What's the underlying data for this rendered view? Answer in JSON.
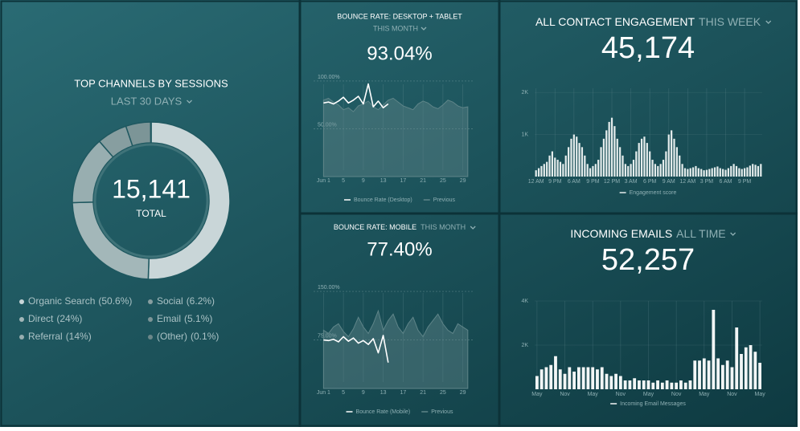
{
  "chart_data": [
    {
      "type": "pie",
      "title": "TOP CHANNELS BY SESSIONS",
      "subtitle": "LAST 30 DAYS",
      "total": "15,141",
      "total_label": "TOTAL",
      "categories": [
        "Organic Search",
        "Direct",
        "Referral",
        "Social",
        "Email",
        "(Other)"
      ],
      "values": [
        50.6,
        24,
        14,
        6.2,
        5.1,
        0.1
      ],
      "value_labels": [
        "(50.6%)",
        "(24%)",
        "(14%)",
        "(6.2%)",
        "(5.1%)",
        "(0.1%)"
      ],
      "colors": [
        "#c9d6d8",
        "#a3b7b9",
        "#98aeb0",
        "#879ea0",
        "#7c9597",
        "#6b8789"
      ]
    },
    {
      "type": "line",
      "title": "BOUNCE RATE: DESKTOP + TABLET",
      "subtitle": "THIS MONTH",
      "kpi": "93.04%",
      "x": [
        1,
        2,
        3,
        4,
        5,
        6,
        7,
        8,
        9,
        10,
        11,
        12,
        13,
        14,
        15,
        16,
        17,
        18,
        19,
        20,
        21,
        22,
        23,
        24,
        25,
        26,
        27,
        28,
        29,
        30
      ],
      "xlim": [
        -1,
        31
      ],
      "xticks": [
        {
          "value": 1,
          "label": "Jun 1"
        },
        5,
        9,
        13,
        17,
        21,
        25,
        29
      ],
      "ylim": [
        0,
        105
      ],
      "yticks": [
        {
          "value": 50,
          "label": "50.00%"
        },
        {
          "value": 100,
          "label": "100.00%"
        }
      ],
      "grid": true,
      "series": [
        {
          "name": "Bounce Rate (Desktop)",
          "color": "#ffffff",
          "values": [
            77,
            78,
            76,
            79,
            83,
            77,
            80,
            84,
            76,
            97,
            73,
            79,
            72,
            76,
            null,
            null,
            null,
            null,
            null,
            null,
            null,
            null,
            null,
            null,
            null,
            null,
            null,
            null,
            null,
            null
          ]
        },
        {
          "name": "Previous",
          "color": "#5f8589",
          "area": true,
          "values": [
            80,
            82,
            78,
            75,
            70,
            72,
            68,
            74,
            76,
            79,
            73,
            70,
            75,
            80,
            82,
            78,
            74,
            72,
            70,
            76,
            79,
            77,
            73,
            71,
            75,
            80,
            78,
            74,
            72,
            73
          ]
        }
      ]
    },
    {
      "type": "line",
      "title": "BOUNCE RATE: MOBILE",
      "subtitle": "THIS MONTH",
      "kpi": "77.40%",
      "x": [
        1,
        2,
        3,
        4,
        5,
        6,
        7,
        8,
        9,
        10,
        11,
        12,
        13,
        14,
        15,
        16,
        17,
        18,
        19,
        20,
        21,
        22,
        23,
        24,
        25,
        26,
        27,
        28,
        29,
        30
      ],
      "xlim": [
        -1,
        31
      ],
      "xticks": [
        {
          "value": 1,
          "label": "Jun 1"
        },
        5,
        9,
        13,
        17,
        21,
        25,
        29
      ],
      "ylim": [
        0,
        160
      ],
      "yticks": [
        {
          "value": 75,
          "label": "75.00%"
        },
        {
          "value": 150,
          "label": "150.00%"
        }
      ],
      "grid": true,
      "series": [
        {
          "name": "Bounce Rate (Mobile)",
          "color": "#ffffff",
          "values": [
            75,
            74,
            76,
            72,
            80,
            73,
            78,
            70,
            74,
            68,
            77,
            55,
            82,
            40,
            null,
            null,
            null,
            null,
            null,
            null,
            null,
            null,
            null,
            null,
            null,
            null,
            null,
            null,
            null,
            null
          ]
        },
        {
          "name": "Previous",
          "color": "#5f8589",
          "area": true,
          "values": [
            90,
            85,
            95,
            100,
            88,
            80,
            92,
            110,
            95,
            85,
            100,
            120,
            90,
            105,
            115,
            95,
            85,
            100,
            110,
            90,
            80,
            95,
            105,
            115,
            100,
            90,
            85,
            100,
            95,
            90
          ]
        }
      ]
    },
    {
      "type": "bar",
      "title": "ALL CONTACT ENGAGEMENT",
      "subtitle": "THIS WEEK",
      "kpi": "45,174",
      "categories": [
        "12 AM",
        null,
        null,
        null,
        null,
        null,
        null,
        "9 PM",
        null,
        null,
        null,
        null,
        null,
        null,
        "6 AM",
        null,
        null,
        null,
        null,
        null,
        null,
        "9 PM",
        null,
        null,
        null,
        null,
        null,
        null,
        "12 PM",
        null,
        null,
        null,
        null,
        null,
        null,
        "3 AM",
        null,
        null,
        null,
        null,
        null,
        null,
        "6 PM",
        null,
        null,
        null,
        null,
        null,
        null,
        "9 AM",
        null,
        null,
        null,
        null,
        null,
        null,
        "12 AM",
        null,
        null,
        null,
        null,
        null,
        null,
        "3 PM",
        null,
        null,
        null,
        null,
        null,
        null,
        "6 AM",
        null,
        null,
        null,
        null,
        null,
        null,
        "9 PM",
        null,
        null,
        null,
        null,
        null,
        null
      ],
      "ylim": [
        0,
        2100
      ],
      "yticks": [
        {
          "value": 1000,
          "label": "1K"
        },
        {
          "value": 2000,
          "label": "2K"
        }
      ],
      "grid": true,
      "series": [
        {
          "name": "Engagement score",
          "color": "#e4ecec",
          "values": [
            150,
            200,
            250,
            300,
            350,
            500,
            600,
            450,
            400,
            350,
            300,
            500,
            700,
            900,
            1000,
            950,
            800,
            700,
            500,
            300,
            200,
            250,
            300,
            400,
            700,
            900,
            1100,
            1300,
            1400,
            1200,
            900,
            700,
            500,
            300,
            250,
            300,
            400,
            600,
            800,
            900,
            950,
            800,
            600,
            400,
            300,
            250,
            300,
            400,
            600,
            1000,
            1100,
            900,
            700,
            500,
            300,
            200,
            180,
            200,
            220,
            250,
            200,
            180,
            150,
            160,
            180,
            200,
            220,
            240,
            200,
            180,
            160,
            200,
            250,
            300,
            250,
            200,
            180,
            200,
            220,
            260,
            300,
            280,
            250,
            300
          ]
        }
      ]
    },
    {
      "type": "bar",
      "title": "INCOMING EMAILS",
      "subtitle": "ALL TIME",
      "kpi": "52,257",
      "categories": [
        "May",
        null,
        null,
        null,
        null,
        null,
        "Nov",
        null,
        null,
        null,
        null,
        null,
        "May",
        null,
        null,
        null,
        null,
        null,
        "Nov",
        null,
        null,
        null,
        null,
        null,
        "May",
        null,
        null,
        null,
        null,
        null,
        "Nov",
        null,
        null,
        null,
        null,
        null,
        "May",
        null,
        null,
        null,
        null,
        null,
        "Nov",
        null,
        null,
        null,
        null,
        null,
        "May"
      ],
      "ylim": [
        0,
        4000
      ],
      "yticks": [
        {
          "value": 2000,
          "label": "2K"
        },
        {
          "value": 4000,
          "label": "4K"
        }
      ],
      "grid": true,
      "series": [
        {
          "name": "Incoming Email Messages",
          "color": "#f2f6f6",
          "values": [
            600,
            900,
            1000,
            1100,
            1500,
            900,
            700,
            1000,
            800,
            1000,
            1000,
            1000,
            1000,
            900,
            1000,
            700,
            600,
            700,
            600,
            400,
            400,
            500,
            400,
            400,
            400,
            300,
            400,
            300,
            400,
            300,
            300,
            400,
            300,
            400,
            1300,
            1300,
            1400,
            1300,
            3600,
            1400,
            1100,
            1300,
            1000,
            2800,
            1600,
            1900,
            2000,
            1700,
            1200
          ]
        }
      ]
    }
  ]
}
